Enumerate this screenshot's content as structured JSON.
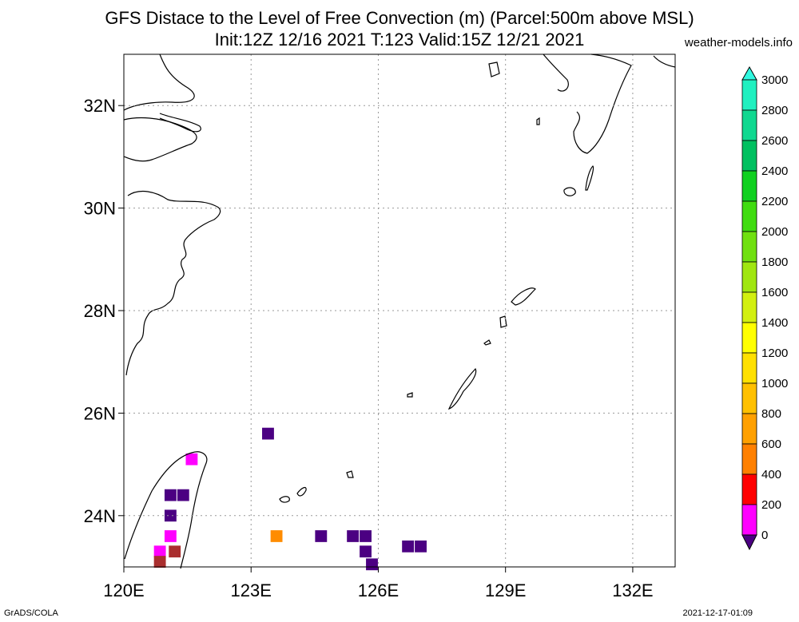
{
  "title_line1": "GFS Distace to the Level of Free Convection (m) (Parcel:500m above MSL)",
  "title_line2": "Init:12Z 12/16 2021 T:123 Valid:15Z 12/21 2021",
  "site": "weather-models.info",
  "footer_left": "GrADS/COLA",
  "footer_right": "2021-12-17-01:09",
  "map": {
    "lon_range": [
      120,
      133
    ],
    "lat_range": [
      23,
      33
    ],
    "lon_ticks": [
      {
        "value": 120,
        "label": "120E"
      },
      {
        "value": 123,
        "label": "123E"
      },
      {
        "value": 126,
        "label": "126E"
      },
      {
        "value": 129,
        "label": "129E"
      },
      {
        "value": 132,
        "label": "132E"
      }
    ],
    "lat_ticks": [
      {
        "value": 24,
        "label": "24N"
      },
      {
        "value": 26,
        "label": "26N"
      },
      {
        "value": 28,
        "label": "28N"
      },
      {
        "value": 30,
        "label": "30N"
      },
      {
        "value": 32,
        "label": "32N"
      }
    ],
    "cells": [
      {
        "lon": 123.4,
        "lat": 25.6,
        "color": "#4b0082"
      },
      {
        "lon": 121.6,
        "lat": 25.1,
        "color": "#ff00ff"
      },
      {
        "lon": 121.1,
        "lat": 24.4,
        "color": "#4b0082"
      },
      {
        "lon": 121.4,
        "lat": 24.4,
        "color": "#4b0082"
      },
      {
        "lon": 121.1,
        "lat": 24.0,
        "color": "#4b0082"
      },
      {
        "lon": 121.1,
        "lat": 23.6,
        "color": "#ff00ff"
      },
      {
        "lon": 121.2,
        "lat": 23.3,
        "color": "#aa2f2f"
      },
      {
        "lon": 120.85,
        "lat": 23.3,
        "color": "#ff00ff"
      },
      {
        "lon": 120.85,
        "lat": 23.1,
        "color": "#aa2f2f"
      },
      {
        "lon": 123.6,
        "lat": 23.6,
        "color": "#ff8c00"
      },
      {
        "lon": 124.65,
        "lat": 23.6,
        "color": "#4b0082"
      },
      {
        "lon": 125.4,
        "lat": 23.6,
        "color": "#4b0082"
      },
      {
        "lon": 125.7,
        "lat": 23.6,
        "color": "#4b0082"
      },
      {
        "lon": 125.7,
        "lat": 23.3,
        "color": "#4b0082"
      },
      {
        "lon": 125.85,
        "lat": 23.05,
        "color": "#4b0082"
      },
      {
        "lon": 126.7,
        "lat": 23.4,
        "color": "#4b0082"
      },
      {
        "lon": 127.0,
        "lat": 23.4,
        "color": "#4b0082"
      }
    ]
  },
  "colorbar": {
    "levels": [
      {
        "value": 3000,
        "label": "3000",
        "color": "#20f0c0"
      },
      {
        "value": 2800,
        "label": "2800",
        "color": "#10d890"
      },
      {
        "value": 2600,
        "label": "2600",
        "color": "#00c060"
      },
      {
        "value": 2400,
        "label": "2400",
        "color": "#10d020"
      },
      {
        "value": 2200,
        "label": "2200",
        "color": "#40dc10"
      },
      {
        "value": 2000,
        "label": "2000",
        "color": "#70e010"
      },
      {
        "value": 1800,
        "label": "1800",
        "color": "#a0e610"
      },
      {
        "value": 1600,
        "label": "1600",
        "color": "#d2ef10"
      },
      {
        "value": 1400,
        "label": "1400",
        "color": "#ffff00"
      },
      {
        "value": 1200,
        "label": "1200",
        "color": "#ffe000"
      },
      {
        "value": 1000,
        "label": "1000",
        "color": "#ffc000"
      },
      {
        "value": 800,
        "label": "800",
        "color": "#ffa000"
      },
      {
        "value": 600,
        "label": "600",
        "color": "#ff8000"
      },
      {
        "value": 400,
        "label": "400",
        "color": "#ff0000"
      },
      {
        "value": 200,
        "label": "200",
        "color": "#aa2f2f"
      },
      {
        "value": 0,
        "label": "0",
        "color": "#ff00ff"
      }
    ],
    "top_color": "#30f8e0",
    "bottom_color": "#4b0082"
  }
}
